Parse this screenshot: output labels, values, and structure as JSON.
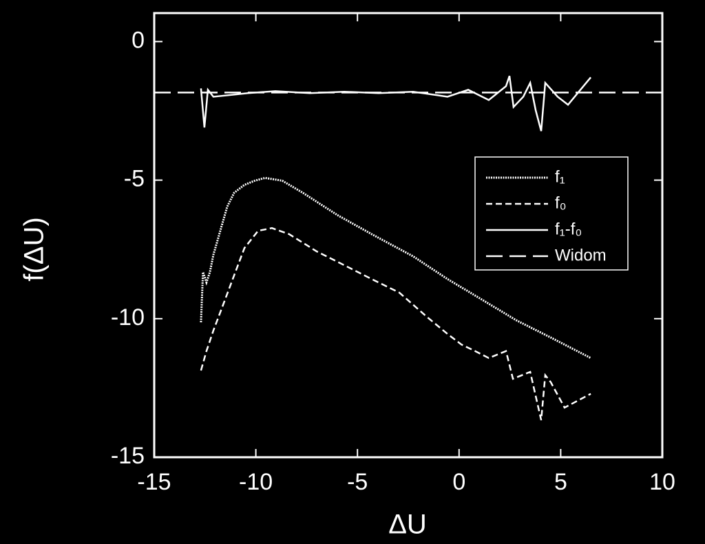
{
  "chart_data": {
    "type": "line",
    "x_label": "ΔU",
    "y_label": "f(ΔU)",
    "xlim": [
      -15,
      10
    ],
    "ylim": [
      -15,
      1.5
    ],
    "xticks": [
      -15,
      -10,
      -5,
      0,
      5,
      10
    ],
    "yticks": [
      -15,
      -10,
      -5,
      0
    ],
    "legend": "right",
    "series": [
      {
        "name": "f₁",
        "color": "#ffffff",
        "dash": "dotted",
        "x": [
          -12.7,
          -12.6,
          -12.43,
          -12.26,
          -12.09,
          -11.75,
          -11.41,
          -11.07,
          -10.56,
          -10.05,
          -9.55,
          -8.7,
          -7.68,
          -5.99,
          -4.3,
          -2.26,
          -0.57,
          1.12,
          2.82,
          4.51,
          6.48
        ],
        "values": [
          -10.13,
          -8.32,
          -8.69,
          -8.32,
          -7.7,
          -6.83,
          -5.96,
          -5.46,
          -5.17,
          -5.02,
          -4.92,
          -5.02,
          -5.46,
          -6.26,
          -6.95,
          -7.75,
          -8.57,
          -9.31,
          -10.06,
          -10.68,
          -11.42
        ]
      },
      {
        "name": "f₀",
        "color": "#ffffff",
        "dash": "short",
        "x": [
          -12.7,
          -12.43,
          -12.09,
          -11.58,
          -11.07,
          -10.56,
          -9.89,
          -9.21,
          -8.36,
          -7.01,
          -5.65,
          -4.3,
          -2.94,
          -1.59,
          -0.57,
          0.11,
          0.79,
          1.46,
          2.31,
          2.65,
          3.5,
          3.77,
          4.04,
          4.24,
          4.51,
          5.19,
          6.48
        ],
        "values": [
          -11.87,
          -11.17,
          -10.43,
          -9.44,
          -8.44,
          -7.45,
          -6.83,
          -6.73,
          -6.95,
          -7.57,
          -8.07,
          -8.57,
          -9.06,
          -9.93,
          -10.55,
          -10.93,
          -11.17,
          -11.42,
          -11.17,
          -12.17,
          -11.92,
          -12.79,
          -13.66,
          -12.04,
          -12.29,
          -13.21,
          -12.71
        ]
      },
      {
        "name": "f₁-f₀",
        "color": "#ffffff",
        "dash": "solid",
        "x": [
          -12.7,
          -12.53,
          -12.36,
          -12.09,
          -11.41,
          -10.39,
          -9.04,
          -7.34,
          -5.65,
          -3.96,
          -2.26,
          -0.57,
          0.45,
          1.46,
          2.31,
          2.48,
          2.68,
          3.16,
          3.5,
          3.77,
          4.04,
          4.24,
          4.85,
          5.36,
          6.48
        ],
        "values": [
          -1.69,
          -3.1,
          -1.74,
          -1.99,
          -1.94,
          -1.86,
          -1.79,
          -1.86,
          -1.81,
          -1.86,
          -1.81,
          -1.99,
          -1.74,
          -2.11,
          -1.61,
          -1.24,
          -2.36,
          -1.99,
          -1.49,
          -2.48,
          -3.23,
          -1.49,
          -1.99,
          -2.28,
          -1.29
        ]
      },
      {
        "name": "Widom",
        "color": "#ffffff",
        "dash": "long",
        "x": [
          -15,
          10
        ],
        "values": [
          -1.84,
          -1.84
        ]
      }
    ]
  }
}
